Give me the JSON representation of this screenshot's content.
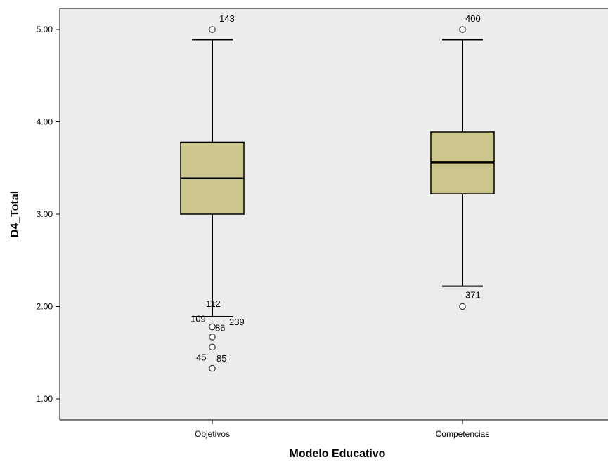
{
  "chart_data": {
    "type": "boxplot",
    "xlabel": "Modelo Educativo",
    "ylabel": "D4_Total",
    "ylim": [
      0.78,
      5.22
    ],
    "yticks": [
      1.0,
      2.0,
      3.0,
      4.0,
      5.0
    ],
    "ytick_labels": [
      "1.00",
      "2.00",
      "3.00",
      "4.00",
      "5.00"
    ],
    "grid": false,
    "colors": {
      "box_fill": "#cdc68c",
      "plot_bg": "#ececec",
      "line": "#000000"
    },
    "categories": [
      "Objetivos",
      "Competencias"
    ],
    "boxes": [
      {
        "category": "Objetivos",
        "whisker_low": 1.89,
        "q1": 3.0,
        "median": 3.39,
        "q3": 3.78,
        "whisker_high": 4.89,
        "outliers": [
          {
            "value": 5.0,
            "label": "143"
          },
          {
            "value": 1.78,
            "label": "109"
          },
          {
            "value": 1.78,
            "label": "86"
          },
          {
            "value": 1.67,
            "label": ""
          },
          {
            "value": 1.56,
            "label": ""
          },
          {
            "value": 1.33,
            "label": "45"
          }
        ],
        "extra_labels": [
          "112",
          "239",
          "85"
        ]
      },
      {
        "category": "Competencias",
        "whisker_low": 2.22,
        "q1": 3.22,
        "median": 3.56,
        "q3": 3.89,
        "whisker_high": 4.89,
        "outliers": [
          {
            "value": 5.0,
            "label": "400"
          },
          {
            "value": 2.0,
            "label": "371"
          }
        ],
        "extra_labels": []
      }
    ]
  }
}
